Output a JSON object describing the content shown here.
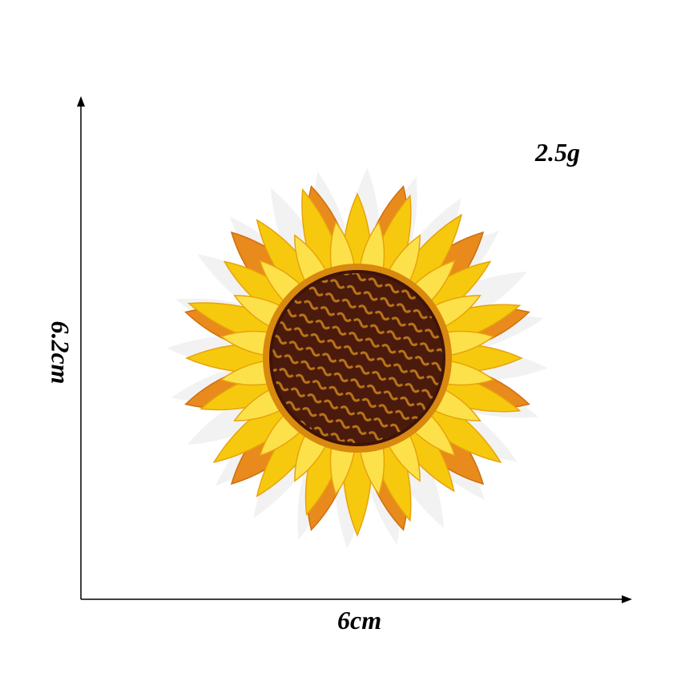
{
  "product_image": {
    "weight_label": "2.5g",
    "width_label": "6cm",
    "height_label": "6.2cm",
    "subject": "sunflower-embroidered-patch-icon",
    "colors": {
      "petal_outer": "#e88a1c",
      "petal_yellow": "#f6c90e",
      "petal_light": "#fde14a",
      "petal_shadow": "#e8a30a",
      "center_dark": "#4a1a0c",
      "center_gold": "#b8741a",
      "backing": "#f2f2f2"
    }
  }
}
